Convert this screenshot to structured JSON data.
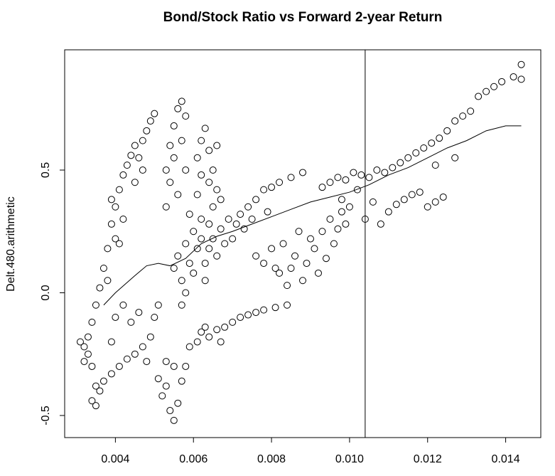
{
  "chart_data": {
    "type": "scatter",
    "title": "Bond/Stock Ratio vs Forward 2-year Return",
    "y_label": "Delt.480.arithmetic",
    "x": [
      0.0032,
      0.0033,
      0.0033,
      0.0034,
      0.0034,
      0.0035,
      0.0035,
      0.0034,
      0.0035,
      0.0036,
      0.0031,
      0.0032,
      0.0036,
      0.0037,
      0.0038,
      0.0038,
      0.0039,
      0.004,
      0.004,
      0.0041,
      0.0042,
      0.0042,
      0.0043,
      0.0044,
      0.0045,
      0.0046,
      0.0047,
      0.0048,
      0.0049,
      0.005,
      0.0045,
      0.0047,
      0.0039,
      0.0041,
      0.0037,
      0.0039,
      0.0041,
      0.0043,
      0.0045,
      0.0047,
      0.0048,
      0.0049,
      0.005,
      0.0051,
      0.0044,
      0.0042,
      0.0046,
      0.0039,
      0.004,
      0.0053,
      0.0054,
      0.0055,
      0.0055,
      0.0056,
      0.0057,
      0.0057,
      0.0058,
      0.0058,
      0.0056,
      0.0054,
      0.0053,
      0.0055,
      0.0056,
      0.0057,
      0.0058,
      0.0059,
      0.006,
      0.006,
      0.0061,
      0.0062,
      0.0062,
      0.0063,
      0.0064,
      0.0064,
      0.0065,
      0.0065,
      0.0066,
      0.0067,
      0.0068,
      0.0069,
      0.007,
      0.0071,
      0.0072,
      0.0073,
      0.0058,
      0.0057,
      0.0059,
      0.0061,
      0.0063,
      0.0061,
      0.0062,
      0.0063,
      0.0064,
      0.0065,
      0.0066,
      0.0064,
      0.0062,
      0.0066,
      0.0067,
      0.0051,
      0.0052,
      0.0053,
      0.0054,
      0.0055,
      0.0056,
      0.0057,
      0.0055,
      0.0053,
      0.0058,
      0.0059,
      0.0061,
      0.0062,
      0.0064,
      0.0066,
      0.0068,
      0.007,
      0.0072,
      0.0074,
      0.0076,
      0.0078,
      0.0081,
      0.0084,
      0.0067,
      0.0063,
      0.0074,
      0.0076,
      0.0078,
      0.008,
      0.0082,
      0.0085,
      0.0088,
      0.0075,
      0.0079,
      0.0076,
      0.0078,
      0.008,
      0.0082,
      0.0083,
      0.0085,
      0.0086,
      0.0088,
      0.0089,
      0.009,
      0.0091,
      0.0092,
      0.0093,
      0.0094,
      0.0095,
      0.0096,
      0.0097,
      0.0098,
      0.0099,
      0.0087,
      0.0084,
      0.0081,
      0.0093,
      0.0095,
      0.0097,
      0.0099,
      0.0101,
      0.0103,
      0.0105,
      0.0107,
      0.0109,
      0.0111,
      0.0113,
      0.0115,
      0.0117,
      0.0119,
      0.0121,
      0.0123,
      0.0125,
      0.0127,
      0.0129,
      0.0131,
      0.0127,
      0.0122,
      0.0098,
      0.01,
      0.0102,
      0.0104,
      0.0106,
      0.0108,
      0.011,
      0.0112,
      0.0114,
      0.0116,
      0.0118,
      0.012,
      0.0122,
      0.0124,
      0.0133,
      0.0135,
      0.0137,
      0.0139,
      0.0142,
      0.0144,
      0.0144
    ],
    "values": [
      -0.22,
      -0.25,
      -0.18,
      -0.3,
      -0.12,
      -0.05,
      -0.38,
      -0.44,
      -0.46,
      -0.4,
      -0.2,
      -0.28,
      0.02,
      0.1,
      0.18,
      0.05,
      0.28,
      0.35,
      0.22,
      0.42,
      0.48,
      0.3,
      0.52,
      0.56,
      0.6,
      0.55,
      0.62,
      0.66,
      0.7,
      0.73,
      0.45,
      0.5,
      0.38,
      0.2,
      -0.36,
      -0.33,
      -0.3,
      -0.27,
      -0.25,
      -0.22,
      -0.28,
      -0.18,
      -0.1,
      -0.05,
      -0.12,
      -0.05,
      -0.08,
      -0.2,
      -0.1,
      0.35,
      0.45,
      0.55,
      0.68,
      0.75,
      0.78,
      0.62,
      0.72,
      0.5,
      0.4,
      0.6,
      0.5,
      0.1,
      0.15,
      0.05,
      0.2,
      0.12,
      0.25,
      0.08,
      0.18,
      0.3,
      0.22,
      0.12,
      0.28,
      0.18,
      0.35,
      0.22,
      0.15,
      0.26,
      0.2,
      0.3,
      0.22,
      0.28,
      0.32,
      0.26,
      0.0,
      -0.05,
      0.32,
      0.4,
      0.05,
      0.55,
      0.62,
      0.67,
      0.58,
      0.5,
      0.6,
      0.45,
      0.48,
      0.42,
      0.38,
      -0.35,
      -0.42,
      -0.38,
      -0.48,
      -0.52,
      -0.45,
      -0.36,
      -0.3,
      -0.28,
      -0.3,
      -0.22,
      -0.2,
      -0.16,
      -0.18,
      -0.15,
      -0.14,
      -0.12,
      -0.1,
      -0.09,
      -0.08,
      -0.07,
      -0.06,
      -0.05,
      -0.2,
      -0.14,
      0.35,
      0.38,
      0.42,
      0.43,
      0.45,
      0.47,
      0.49,
      0.3,
      0.33,
      0.15,
      0.12,
      0.18,
      0.08,
      0.2,
      0.1,
      0.15,
      0.05,
      0.12,
      0.22,
      0.18,
      0.08,
      0.25,
      0.14,
      0.3,
      0.2,
      0.26,
      0.33,
      0.28,
      0.25,
      0.03,
      0.1,
      0.43,
      0.45,
      0.47,
      0.46,
      0.49,
      0.48,
      0.47,
      0.5,
      0.49,
      0.51,
      0.53,
      0.55,
      0.57,
      0.59,
      0.61,
      0.63,
      0.66,
      0.7,
      0.72,
      0.74,
      0.55,
      0.52,
      0.38,
      0.35,
      0.42,
      0.3,
      0.37,
      0.28,
      0.33,
      0.36,
      0.38,
      0.4,
      0.41,
      0.35,
      0.37,
      0.39,
      0.8,
      0.82,
      0.84,
      0.86,
      0.88,
      0.93,
      0.87
    ],
    "smooth": {
      "x": [
        0.0037,
        0.004,
        0.0045,
        0.0048,
        0.0051,
        0.0054,
        0.0058,
        0.0062,
        0.0066,
        0.007,
        0.0075,
        0.008,
        0.0085,
        0.009,
        0.0095,
        0.01,
        0.0105,
        0.011,
        0.0115,
        0.012,
        0.0125,
        0.013,
        0.0135,
        0.014,
        0.0144
      ],
      "values": [
        -0.05,
        0.0,
        0.07,
        0.11,
        0.12,
        0.11,
        0.14,
        0.2,
        0.23,
        0.25,
        0.28,
        0.31,
        0.34,
        0.37,
        0.39,
        0.41,
        0.44,
        0.48,
        0.51,
        0.55,
        0.59,
        0.62,
        0.66,
        0.68,
        0.68
      ]
    },
    "vline": 0.0104,
    "xlim": [
      0.0027,
      0.0149
    ],
    "ylim": [
      -0.59,
      0.99
    ],
    "xticks": [
      0.004,
      0.006,
      0.008,
      {
        "value": 0.01,
        "label": "0.010"
      },
      0.012,
      0.014
    ],
    "yticks": [
      -0.5,
      {
        "value": 0,
        "label": "0.0"
      },
      0.5
    ],
    "color": "#000000"
  }
}
